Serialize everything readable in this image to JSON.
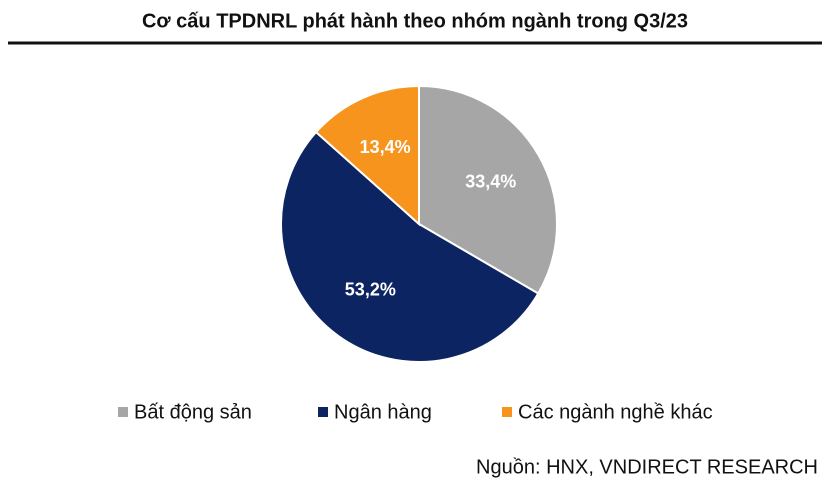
{
  "chart_data": {
    "type": "pie",
    "title": "Cơ cấu TPDNRL phát hành theo nhóm ngành trong Q3/23",
    "categories": [
      "Bất động sản",
      "Ngân hàng",
      "Các ngành nghề khác"
    ],
    "values": [
      33.4,
      53.2,
      13.4
    ],
    "value_labels": [
      "33,4%",
      "53,2%",
      "13,4%"
    ],
    "colors": [
      "#a6a6a6",
      "#0c2461",
      "#f7941d"
    ],
    "source": "Nguồn: HNX, VNDIRECT RESEARCH"
  }
}
